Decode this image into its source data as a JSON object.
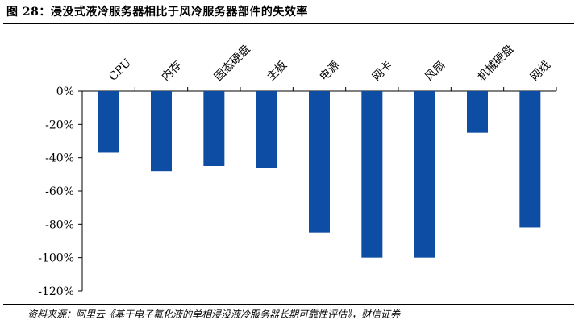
{
  "title": "图 28：浸没式液冷服务器相比于风冷服务器部件的失效率",
  "source": "资料来源：阿里云《基于电子氟化液的单相浸没液冷服务器长期可靠性评估》，财信证券",
  "colors": {
    "bar": "#0E4DA4",
    "axis": "#000000"
  },
  "chart_data": {
    "type": "bar",
    "categories": [
      "CPU",
      "内存",
      "固态硬盘",
      "主板",
      "电源",
      "网卡",
      "风扇",
      "机械硬盘",
      "网线"
    ],
    "values": [
      -37,
      -48,
      -45,
      -46,
      -85,
      -100,
      -100,
      -25,
      -82
    ],
    "unit": "%",
    "ylim": [
      -120,
      0
    ],
    "yticks": [
      0,
      -20,
      -40,
      -60,
      -80,
      -100,
      -120
    ],
    "ytick_labels": [
      "0%",
      "-20%",
      "-40%",
      "-60%",
      "-80%",
      "-100%",
      "-120%"
    ],
    "grid": false,
    "legend": "none"
  }
}
